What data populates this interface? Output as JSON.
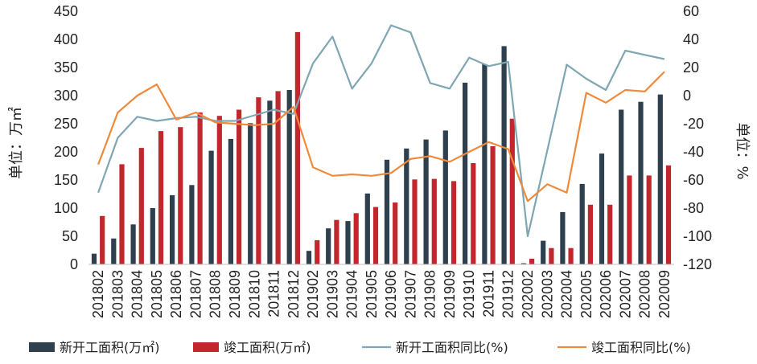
{
  "chart_data": {
    "type": "bar",
    "categories": [
      "201802",
      "201803",
      "201804",
      "201805",
      "201806",
      "201807",
      "201808",
      "201809",
      "201810",
      "201811",
      "201812",
      "201902",
      "201903",
      "201904",
      "201905",
      "201906",
      "201907",
      "201908",
      "201909",
      "201910",
      "201911",
      "201912",
      "202002",
      "202003",
      "202004",
      "202005",
      "202006",
      "202007",
      "202008",
      "202009"
    ],
    "series": [
      {
        "name": "新开工面积(万㎡)",
        "kind": "bar",
        "axis": "left",
        "color": "#2e3f4e",
        "values": [
          19,
          46,
          71,
          100,
          123,
          141,
          202,
          223,
          251,
          291,
          310,
          24,
          64,
          77,
          126,
          186,
          206,
          222,
          238,
          323,
          356,
          388,
          2,
          42,
          93,
          143,
          197,
          275,
          289,
          302
        ]
      },
      {
        "name": "竣工面积(万㎡)",
        "kind": "bar",
        "axis": "left",
        "color": "#c1272d",
        "values": [
          86,
          178,
          207,
          237,
          244,
          270,
          264,
          275,
          297,
          308,
          413,
          43,
          79,
          91,
          102,
          110,
          151,
          152,
          148,
          180,
          210,
          259,
          10,
          29,
          29,
          106,
          106,
          158,
          158,
          176
        ]
      },
      {
        "name": "新开工面积同比(%)",
        "kind": "line",
        "axis": "right",
        "color": "#7fa6b3",
        "values": [
          -69,
          -30,
          -15,
          -18,
          -16,
          -15,
          -18,
          -18,
          -14,
          -10,
          -13,
          23,
          42,
          5,
          23,
          50,
          45,
          9,
          5,
          27,
          21,
          24,
          -100,
          -39,
          22,
          12,
          4,
          32,
          29,
          26
        ]
      },
      {
        "name": "竣工面积同比(%)",
        "kind": "line",
        "axis": "right",
        "color": "#ef8a3c",
        "values": [
          -49,
          -12,
          0,
          8,
          -17,
          -12,
          -19,
          -20,
          -21,
          -20,
          -8,
          -51,
          -57,
          -56,
          -57,
          -55,
          -45,
          -43,
          -47,
          -40,
          -33,
          -38,
          -75,
          -63,
          -69,
          2,
          -5,
          4,
          3,
          17
        ]
      }
    ],
    "y_left": {
      "label": "单位：万㎡",
      "ylim": [
        0,
        450
      ],
      "ticks": [
        0,
        50,
        100,
        150,
        200,
        250,
        300,
        350,
        400,
        450
      ]
    },
    "y_right": {
      "label": "单位：%",
      "ylim": [
        -120,
        60
      ],
      "ticks": [
        -120,
        -100,
        -80,
        -60,
        -40,
        -20,
        0,
        20,
        40,
        60
      ]
    },
    "grid": false,
    "legend_position": "bottom"
  }
}
